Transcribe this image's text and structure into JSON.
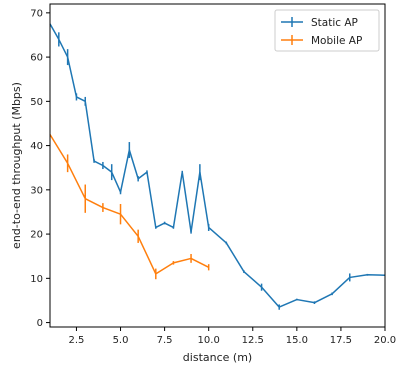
{
  "chart_data": {
    "type": "line",
    "title": "",
    "xlabel": "distance (m)",
    "ylabel": "end-to-end throughput (Mbps)",
    "xlim": [
      1,
      20
    ],
    "ylim": [
      -1,
      72
    ],
    "x_ticks": [
      {
        "value": 2.5,
        "label": "2.5"
      },
      {
        "value": 5.0,
        "label": "5.0"
      },
      {
        "value": 7.5,
        "label": "7.5"
      },
      {
        "value": 10.0,
        "label": "10.0"
      },
      {
        "value": 12.5,
        "label": "12.5"
      },
      {
        "value": 15.0,
        "label": "15.0"
      },
      {
        "value": 17.5,
        "label": "17.5"
      },
      {
        "value": 20.0,
        "label": "20.0"
      }
    ],
    "y_ticks": [
      {
        "value": 0,
        "label": "0"
      },
      {
        "value": 10,
        "label": "10"
      },
      {
        "value": 20,
        "label": "20"
      },
      {
        "value": 30,
        "label": "30"
      },
      {
        "value": 40,
        "label": "40"
      },
      {
        "value": 50,
        "label": "50"
      },
      {
        "value": 60,
        "label": "60"
      },
      {
        "value": 70,
        "label": "70"
      }
    ],
    "grid": false,
    "legend_position": "top-right",
    "series": [
      {
        "name": "Static AP",
        "color": "#1f77b4",
        "x": [
          1.0,
          1.5,
          2.0,
          2.5,
          3.0,
          3.5,
          4.0,
          4.5,
          5.0,
          5.5,
          6.0,
          6.5,
          7.0,
          7.5,
          8.0,
          8.5,
          9.0,
          9.5,
          10.0,
          11.0,
          12.0,
          13.0,
          14.0,
          15.0,
          16.0,
          17.0,
          18.0,
          19.0,
          20.0
        ],
        "y": [
          67.5,
          64.0,
          60.0,
          51.0,
          50.0,
          36.5,
          35.5,
          34.0,
          29.5,
          39.0,
          32.5,
          34.0,
          21.5,
          22.5,
          21.5,
          34.0,
          20.5,
          34.0,
          21.5,
          18.0,
          11.5,
          8.0,
          3.5,
          5.2,
          4.5,
          6.5,
          10.2,
          10.8,
          10.7
        ],
        "err": [
          0,
          1.6,
          1.8,
          0.8,
          1.0,
          0.4,
          0.8,
          1.8,
          0.5,
          1.8,
          0.6,
          0.4,
          0.3,
          0.3,
          0.3,
          0.3,
          0.4,
          1.8,
          0.8,
          0.3,
          0.3,
          0.8,
          0.6,
          0.2,
          0.3,
          0.3,
          0.9,
          0.2,
          0
        ]
      },
      {
        "name": "Mobile AP",
        "color": "#ff7f0e",
        "x": [
          1.0,
          2.0,
          3.0,
          4.0,
          5.0,
          6.0,
          7.0,
          8.0,
          9.0,
          10.0
        ],
        "y": [
          42.5,
          36.0,
          28.0,
          26.0,
          24.5,
          19.5,
          11.0,
          13.5,
          14.5,
          12.5
        ],
        "err": [
          0,
          2.0,
          3.2,
          1.0,
          2.3,
          1.5,
          1.2,
          0.4,
          1.0,
          0.7
        ]
      }
    ]
  }
}
